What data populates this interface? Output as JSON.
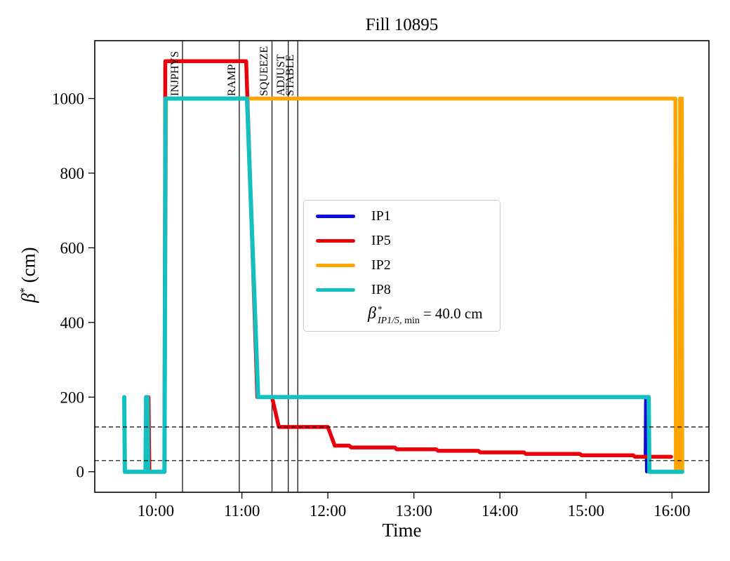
{
  "title": "Fill 10895",
  "axes": {
    "xlabel": "Time",
    "ylabel_beta": "β",
    "ylabel_sup": "*",
    "ylabel_unit": " (cm)"
  },
  "legend": {
    "entries": [
      {
        "label": "IP1",
        "color": "#0b0be0"
      },
      {
        "label": "IP5",
        "color": "#e8000b"
      },
      {
        "label": "IP2",
        "color": "#ffa502"
      },
      {
        "label": "IP8",
        "color": "#12c0c0"
      }
    ],
    "annotation": {
      "beta": "β",
      "sup": "*",
      "sub_italic": "IP1/5,",
      "sub_roman": " min",
      "value": "= 40.0 cm"
    }
  },
  "chart_data": {
    "type": "line",
    "title": "Fill 10895",
    "xlabel": "Time",
    "ylabel": "β* (cm)",
    "x_unit": "decimal_hours",
    "y_unit": "cm",
    "xlim": [
      9.29,
      16.43
    ],
    "ylim": [
      -55,
      1155
    ],
    "grid": false,
    "legend_position": "center",
    "xticks": [
      {
        "t": 10,
        "label": "10:00"
      },
      {
        "t": 11,
        "label": "11:00"
      },
      {
        "t": 12,
        "label": "12:00"
      },
      {
        "t": 13,
        "label": "13:00"
      },
      {
        "t": 14,
        "label": "14:00"
      },
      {
        "t": 15,
        "label": "15:00"
      },
      {
        "t": 16,
        "label": "16:00"
      }
    ],
    "yticks": [
      0,
      200,
      400,
      600,
      800,
      1000
    ],
    "events": [
      {
        "label": "INJPHYS",
        "time": 10.31
      },
      {
        "label": "RAMP",
        "time": 10.97
      },
      {
        "label": "SQUEEZE",
        "time": 11.35
      },
      {
        "label": "ADJUST",
        "time": 11.54
      },
      {
        "label": "STABLE",
        "time": 11.65
      }
    ],
    "reference_hlines_cm": [
      120,
      30
    ],
    "beta_min_ip15_cm": 40.0,
    "series": [
      {
        "name": "IP1",
        "color": "#0b0be0",
        "lw": 4.5,
        "points": [
          [
            9.89,
            0
          ],
          [
            9.895,
            200
          ],
          [
            9.915,
            200
          ],
          [
            9.925,
            0
          ],
          [
            10.1,
            0
          ],
          [
            10.11,
            1100
          ],
          [
            11.05,
            1100
          ],
          [
            11.18,
            200
          ],
          [
            11.35,
            200
          ],
          [
            11.43,
            120
          ],
          [
            12.0,
            120
          ],
          [
            12.08,
            70
          ],
          [
            12.25,
            70
          ],
          [
            12.27,
            65
          ],
          [
            12.78,
            65
          ],
          [
            12.8,
            60
          ],
          [
            13.26,
            60
          ],
          [
            13.28,
            56
          ],
          [
            13.75,
            56
          ],
          [
            13.77,
            52
          ],
          [
            14.28,
            52
          ],
          [
            14.3,
            48
          ],
          [
            14.93,
            48
          ],
          [
            14.95,
            44
          ],
          [
            15.55,
            44
          ],
          [
            15.57,
            40
          ],
          [
            15.69,
            40
          ],
          [
            15.695,
            200
          ],
          [
            15.705,
            0
          ]
        ]
      },
      {
        "name": "IP5",
        "color": "#e8000b",
        "lw": 5.5,
        "points": [
          [
            9.89,
            0
          ],
          [
            9.895,
            200
          ],
          [
            9.915,
            200
          ],
          [
            9.925,
            0
          ],
          [
            10.1,
            0
          ],
          [
            10.11,
            1100
          ],
          [
            11.05,
            1100
          ],
          [
            11.18,
            200
          ],
          [
            11.35,
            200
          ],
          [
            11.43,
            120
          ],
          [
            12.0,
            120
          ],
          [
            12.08,
            70
          ],
          [
            12.25,
            70
          ],
          [
            12.27,
            65
          ],
          [
            12.78,
            65
          ],
          [
            12.8,
            60
          ],
          [
            13.26,
            60
          ],
          [
            13.28,
            56
          ],
          [
            13.75,
            56
          ],
          [
            13.77,
            52
          ],
          [
            14.28,
            52
          ],
          [
            14.3,
            48
          ],
          [
            14.93,
            48
          ],
          [
            14.95,
            44
          ],
          [
            15.55,
            44
          ],
          [
            15.57,
            40
          ],
          [
            15.99,
            40
          ]
        ]
      },
      {
        "name": "IP2",
        "color": "#ffa502",
        "lw": 5.5,
        "points": [
          [
            10.1,
            0
          ],
          [
            10.118,
            1000
          ],
          [
            16.04,
            1000
          ],
          [
            16.046,
            0
          ],
          [
            16.09,
            0
          ],
          [
            16.095,
            1000
          ],
          [
            16.115,
            1000
          ],
          [
            16.12,
            0
          ]
        ]
      },
      {
        "name": "IP8",
        "color": "#12c0c0",
        "lw": 6,
        "points": [
          [
            9.633,
            200
          ],
          [
            9.64,
            0
          ],
          [
            9.88,
            0
          ],
          [
            9.887,
            200
          ],
          [
            9.903,
            200
          ],
          [
            9.91,
            0
          ],
          [
            10.1,
            0
          ],
          [
            10.113,
            1000
          ],
          [
            11.06,
            1000
          ],
          [
            11.19,
            200
          ],
          [
            15.73,
            200
          ],
          [
            15.737,
            0
          ],
          [
            16.12,
            0
          ]
        ]
      }
    ]
  }
}
